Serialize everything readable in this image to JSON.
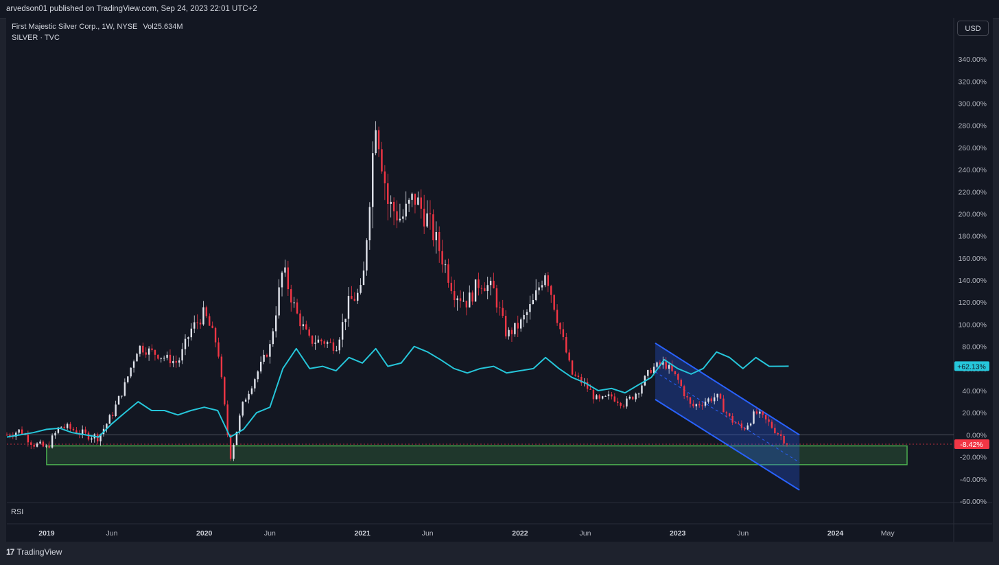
{
  "header": {
    "published": "arvedson01 published on TradingView.com, Sep 24, 2023 22:01 UTC+2"
  },
  "legend": {
    "symbol": "First Majestic Silver Corp., 1W, NYSE",
    "vol_label": "Vol",
    "vol_value": "25.634M",
    "compare": "SILVER · TVC"
  },
  "currency_button": "USD",
  "rsi_label": "RSI",
  "footer": {
    "brand": "TradingView",
    "logo_glyph": "17"
  },
  "colors": {
    "background": "#131722",
    "silver_line": "#26c6da",
    "bull": "#e0e3eb",
    "bear": "#f23645",
    "support_zone": "#4caf50",
    "channel": "#2962ff"
  },
  "chart_data": {
    "type": "line",
    "title": "",
    "yaxis": {
      "ticks": [
        "340.00%",
        "320.00%",
        "300.00%",
        "280.00%",
        "260.00%",
        "240.00%",
        "220.00%",
        "200.00%",
        "180.00%",
        "160.00%",
        "140.00%",
        "120.00%",
        "100.00%",
        "80.00%",
        "60.00%",
        "40.00%",
        "20.00%",
        "0.00%",
        "-20.00%",
        "-40.00%",
        "-60.00%"
      ],
      "tick_values": [
        340,
        320,
        300,
        280,
        260,
        240,
        220,
        200,
        180,
        160,
        140,
        120,
        100,
        80,
        60,
        40,
        20,
        0,
        -20,
        -40,
        -60
      ],
      "ylim": [
        -60,
        350
      ]
    },
    "xaxis": {
      "labels": [
        "2019",
        "Jun",
        "2020",
        "Jun",
        "2021",
        "Jun",
        "2022",
        "Jun",
        "2023",
        "Jun",
        "2024",
        "May"
      ],
      "label_dates": [
        "2019-01-01",
        "2019-06-01",
        "2020-01-01",
        "2020-06-01",
        "2021-01-01",
        "2021-06-01",
        "2022-01-01",
        "2022-06-01",
        "2023-01-01",
        "2023-06-01",
        "2024-01-01",
        "2024-05-01"
      ],
      "bold_labels": [
        "2019",
        "2020",
        "2021",
        "2022",
        "2023",
        "2024"
      ],
      "xlim": [
        "2018-10-01",
        "2024-10-01"
      ]
    },
    "price_badges": [
      {
        "label": "+62.13%",
        "value": 62.13,
        "color": "#26c6da"
      },
      {
        "label": "-8.42%",
        "value": -8.42,
        "color": "#f23645"
      }
    ],
    "series": [
      {
        "name": "First Majestic Silver Corp.",
        "kind": "candles",
        "points": [
          [
            "2018-10-01",
            0
          ],
          [
            "2018-11-01",
            4
          ],
          [
            "2018-12-01",
            -8
          ],
          [
            "2019-01-01",
            -12
          ],
          [
            "2019-02-01",
            8
          ],
          [
            "2019-03-01",
            5
          ],
          [
            "2019-04-01",
            0
          ],
          [
            "2019-05-01",
            -2
          ],
          [
            "2019-06-01",
            18
          ],
          [
            "2019-07-01",
            45
          ],
          [
            "2019-08-01",
            80
          ],
          [
            "2019-09-01",
            75
          ],
          [
            "2019-10-01",
            70
          ],
          [
            "2019-11-01",
            65
          ],
          [
            "2019-12-01",
            95
          ],
          [
            "2020-01-01",
            110
          ],
          [
            "2020-02-01",
            80
          ],
          [
            "2020-03-01",
            -20
          ],
          [
            "2020-04-01",
            30
          ],
          [
            "2020-05-01",
            55
          ],
          [
            "2020-06-01",
            80
          ],
          [
            "2020-07-01",
            150
          ],
          [
            "2020-08-01",
            110
          ],
          [
            "2020-09-01",
            85
          ],
          [
            "2020-10-01",
            85
          ],
          [
            "2020-11-01",
            80
          ],
          [
            "2020-12-01",
            120
          ],
          [
            "2021-01-01",
            130
          ],
          [
            "2021-02-01",
            290
          ],
          [
            "2021-03-01",
            210
          ],
          [
            "2021-04-01",
            195
          ],
          [
            "2021-05-01",
            215
          ],
          [
            "2021-06-01",
            195
          ],
          [
            "2021-07-01",
            165
          ],
          [
            "2021-08-01",
            130
          ],
          [
            "2021-09-01",
            120
          ],
          [
            "2021-10-01",
            140
          ],
          [
            "2021-11-01",
            130
          ],
          [
            "2021-12-01",
            90
          ],
          [
            "2022-01-01",
            100
          ],
          [
            "2022-02-01",
            120
          ],
          [
            "2022-03-01",
            150
          ],
          [
            "2022-04-01",
            100
          ],
          [
            "2022-05-01",
            55
          ],
          [
            "2022-06-01",
            45
          ],
          [
            "2022-07-01",
            30
          ],
          [
            "2022-08-01",
            35
          ],
          [
            "2022-09-01",
            28
          ],
          [
            "2022-10-01",
            40
          ],
          [
            "2022-11-01",
            60
          ],
          [
            "2022-12-01",
            65
          ],
          [
            "2023-01-01",
            50
          ],
          [
            "2023-02-01",
            25
          ],
          [
            "2023-03-01",
            30
          ],
          [
            "2023-04-01",
            35
          ],
          [
            "2023-05-01",
            15
          ],
          [
            "2023-06-01",
            5
          ],
          [
            "2023-07-01",
            20
          ],
          [
            "2023-08-01",
            10
          ],
          [
            "2023-09-15",
            -8.42
          ]
        ]
      },
      {
        "name": "SILVER · TVC",
        "kind": "line",
        "points": [
          [
            "2018-10-01",
            -2
          ],
          [
            "2018-11-01",
            0
          ],
          [
            "2018-12-01",
            2
          ],
          [
            "2019-01-01",
            5
          ],
          [
            "2019-02-01",
            6
          ],
          [
            "2019-03-01",
            2
          ],
          [
            "2019-04-01",
            0
          ],
          [
            "2019-05-01",
            -2
          ],
          [
            "2019-06-01",
            10
          ],
          [
            "2019-07-01",
            20
          ],
          [
            "2019-08-01",
            30
          ],
          [
            "2019-09-01",
            22
          ],
          [
            "2019-10-01",
            22
          ],
          [
            "2019-11-01",
            18
          ],
          [
            "2019-12-01",
            22
          ],
          [
            "2020-01-01",
            25
          ],
          [
            "2020-02-01",
            22
          ],
          [
            "2020-03-01",
            -2
          ],
          [
            "2020-04-01",
            5
          ],
          [
            "2020-05-01",
            20
          ],
          [
            "2020-06-01",
            25
          ],
          [
            "2020-07-01",
            60
          ],
          [
            "2020-08-01",
            78
          ],
          [
            "2020-09-01",
            60
          ],
          [
            "2020-10-01",
            62
          ],
          [
            "2020-11-01",
            58
          ],
          [
            "2020-12-01",
            70
          ],
          [
            "2021-01-01",
            65
          ],
          [
            "2021-02-01",
            78
          ],
          [
            "2021-03-01",
            62
          ],
          [
            "2021-04-01",
            65
          ],
          [
            "2021-05-01",
            80
          ],
          [
            "2021-06-01",
            75
          ],
          [
            "2021-07-01",
            68
          ],
          [
            "2021-08-01",
            60
          ],
          [
            "2021-09-01",
            56
          ],
          [
            "2021-10-01",
            60
          ],
          [
            "2021-11-01",
            62
          ],
          [
            "2021-12-01",
            56
          ],
          [
            "2022-01-01",
            58
          ],
          [
            "2022-02-01",
            60
          ],
          [
            "2022-03-01",
            70
          ],
          [
            "2022-04-01",
            60
          ],
          [
            "2022-05-01",
            52
          ],
          [
            "2022-06-01",
            47
          ],
          [
            "2022-07-01",
            40
          ],
          [
            "2022-08-01",
            42
          ],
          [
            "2022-09-01",
            38
          ],
          [
            "2022-10-01",
            45
          ],
          [
            "2022-11-01",
            52
          ],
          [
            "2022-12-01",
            68
          ],
          [
            "2023-01-01",
            60
          ],
          [
            "2023-02-01",
            55
          ],
          [
            "2023-03-01",
            60
          ],
          [
            "2023-04-01",
            75
          ],
          [
            "2023-05-01",
            70
          ],
          [
            "2023-06-01",
            60
          ],
          [
            "2023-07-01",
            70
          ],
          [
            "2023-08-01",
            62
          ],
          [
            "2023-09-15",
            62.13
          ]
        ]
      }
    ],
    "annotations": {
      "support_zone": {
        "from": "2019-01-01",
        "to": "2024-06-15",
        "y_top": -10,
        "y_bottom": -27
      },
      "descending_channel": {
        "upper": [
          [
            "2022-11-10",
            83
          ],
          [
            "2023-10-10",
            0
          ]
        ],
        "lower": [
          [
            "2022-11-10",
            32
          ],
          [
            "2023-10-10",
            -50
          ]
        ],
        "midline": [
          [
            "2022-11-10",
            57
          ],
          [
            "2023-10-10",
            -25
          ]
        ]
      },
      "zero_line": 0
    }
  }
}
